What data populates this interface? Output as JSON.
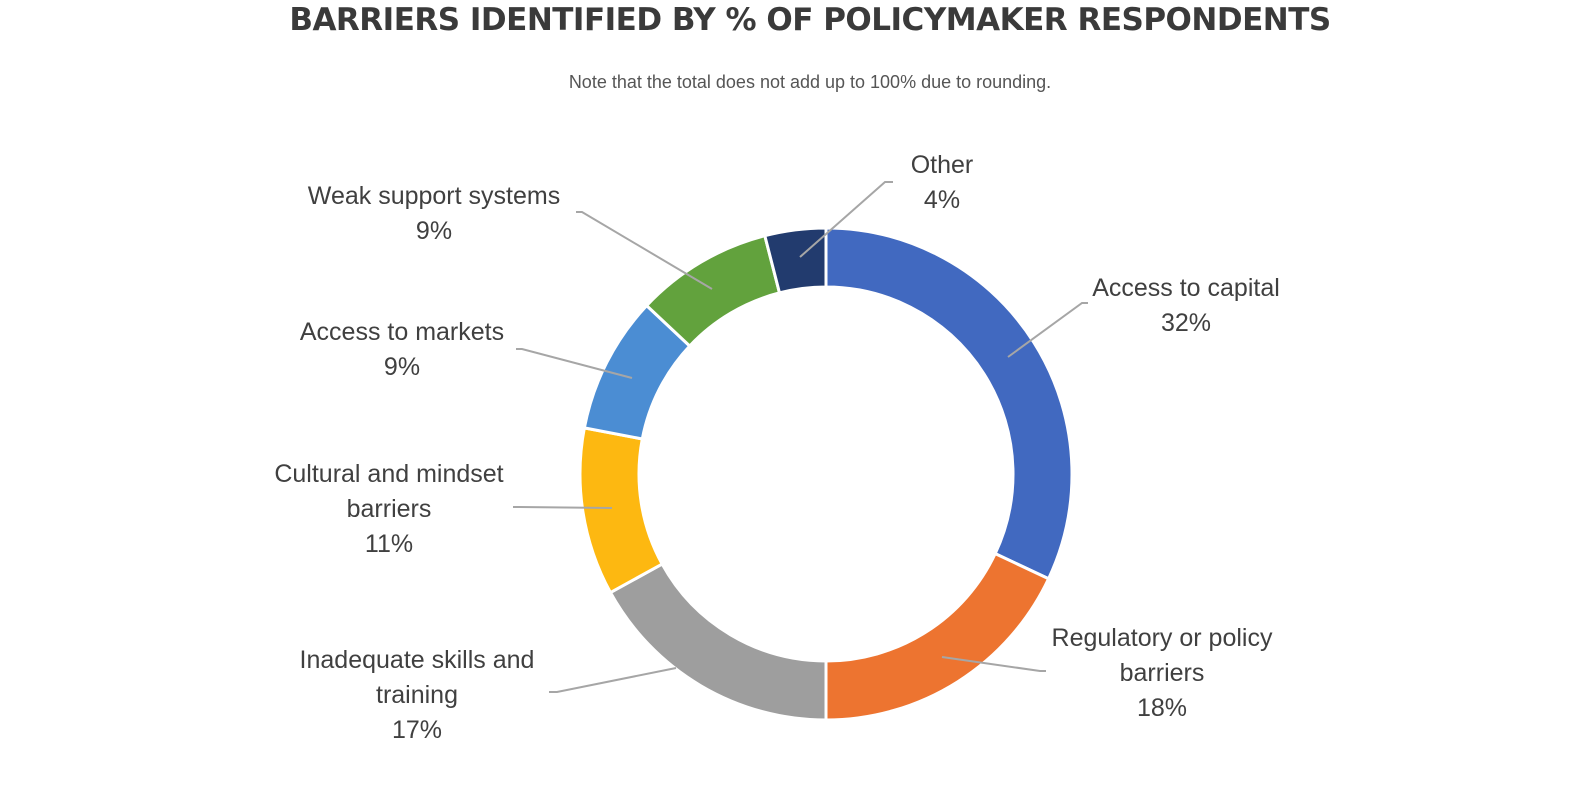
{
  "chart_data": {
    "type": "donut",
    "title": "BARRIERS IDENTIFIED BY % OF POLICYMAKER RESPONDENTS",
    "subtitle": "Note that the total does not add up to 100% due to rounding.",
    "unit": "%",
    "slices": [
      {
        "name": "Access to capital",
        "label_lines": [
          "Access to capital"
        ],
        "value": 32,
        "value_label": "32%",
        "color": "#4169C0"
      },
      {
        "name": "Regulatory or policy barriers",
        "label_lines": [
          "Regulatory or policy",
          "barriers"
        ],
        "value": 18,
        "value_label": "18%",
        "color": "#ED7430"
      },
      {
        "name": "Inadequate skills and training",
        "label_lines": [
          "Inadequate skills and",
          "training"
        ],
        "value": 17,
        "value_label": "17%",
        "color": "#9E9E9E"
      },
      {
        "name": "Cultural and mindset barriers",
        "label_lines": [
          "Cultural and mindset",
          "barriers"
        ],
        "value": 11,
        "value_label": "11%",
        "color": "#FDB811"
      },
      {
        "name": "Access to markets",
        "label_lines": [
          "Access to markets"
        ],
        "value": 9,
        "value_label": "9%",
        "color": "#4B8DD3"
      },
      {
        "name": "Weak support systems",
        "label_lines": [
          "Weak support systems"
        ],
        "value": 9,
        "value_label": "9%",
        "color": "#62A23D"
      },
      {
        "name": "Other",
        "label_lines": [
          "Other"
        ],
        "value": 4,
        "value_label": "4%",
        "color": "#223B6E"
      }
    ],
    "start_position": "top",
    "direction": "clockwise"
  }
}
